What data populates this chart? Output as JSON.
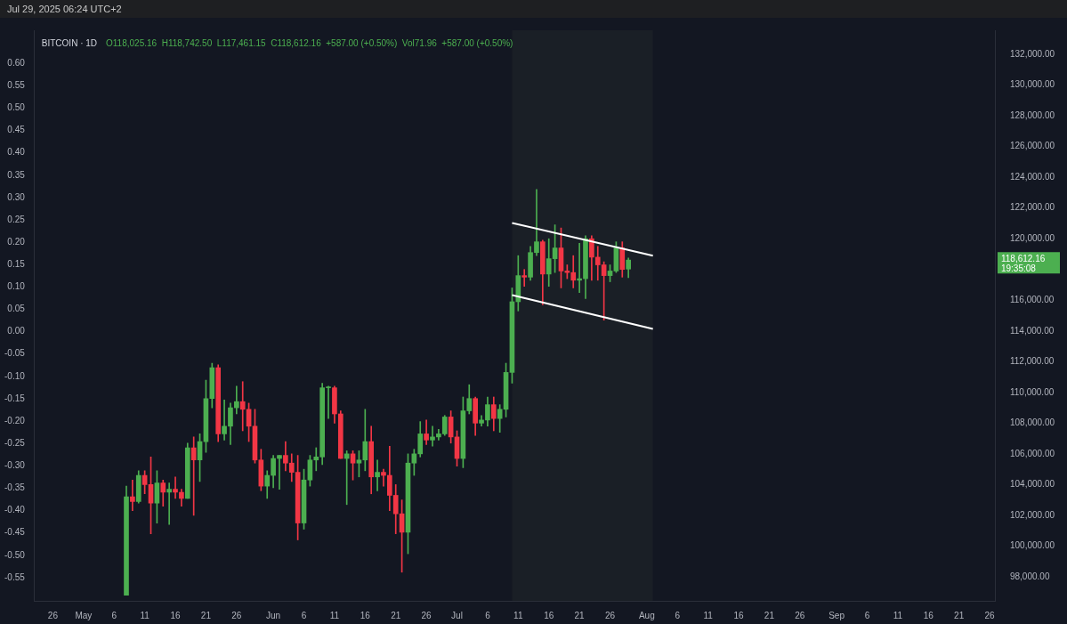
{
  "chart_data": {
    "type": "candlestick",
    "title": "BITCOIN · 1D",
    "subtitle": "O118,025.16  H118,742.50  L117,461.15  C118,612.16  +587.00 (+0.50%)  Vol71.96  +587.00 (+0.50%)",
    "x": [
      "2025-05-08",
      "2025-05-09",
      "2025-05-10",
      "2025-05-11",
      "2025-05-12",
      "2025-05-13",
      "2025-05-14",
      "2025-05-15",
      "2025-05-16",
      "2025-05-17",
      "2025-05-18",
      "2025-05-19",
      "2025-05-20",
      "2025-05-21",
      "2025-05-22",
      "2025-05-23",
      "2025-05-24",
      "2025-05-25",
      "2025-05-26",
      "2025-05-27",
      "2025-05-28",
      "2025-05-29",
      "2025-05-30",
      "2025-05-31",
      "2025-06-01",
      "2025-06-02",
      "2025-06-03",
      "2025-06-04",
      "2025-06-05",
      "2025-06-06",
      "2025-06-07",
      "2025-06-08",
      "2025-06-09",
      "2025-06-10",
      "2025-06-11",
      "2025-06-12",
      "2025-06-13",
      "2025-06-14",
      "2025-06-15",
      "2025-06-16",
      "2025-06-17",
      "2025-06-18",
      "2025-06-19",
      "2025-06-20",
      "2025-06-21",
      "2025-06-22",
      "2025-06-23",
      "2025-06-24",
      "2025-06-25",
      "2025-06-26",
      "2025-06-27",
      "2025-06-28",
      "2025-06-29",
      "2025-06-30",
      "2025-07-01",
      "2025-07-02",
      "2025-07-03",
      "2025-07-04",
      "2025-07-05",
      "2025-07-06",
      "2025-07-07",
      "2025-07-08",
      "2025-07-09",
      "2025-07-10",
      "2025-07-11",
      "2025-07-12",
      "2025-07-13",
      "2025-07-14",
      "2025-07-15",
      "2025-07-16",
      "2025-07-17",
      "2025-07-18",
      "2025-07-19",
      "2025-07-20",
      "2025-07-21",
      "2025-07-22",
      "2025-07-23",
      "2025-07-24",
      "2025-07-25",
      "2025-07-26",
      "2025-07-27",
      "2025-07-28",
      "2025-07-29"
    ],
    "ohlc": [
      [
        96800,
        103900,
        96800,
        103200
      ],
      [
        103200,
        104300,
        102300,
        102900
      ],
      [
        102900,
        104900,
        102800,
        104600
      ],
      [
        104600,
        104900,
        103400,
        104000
      ],
      [
        104000,
        105800,
        100800,
        102800
      ],
      [
        102800,
        104900,
        101500,
        104100
      ],
      [
        104100,
        104300,
        102600,
        103500
      ],
      [
        103500,
        104100,
        101400,
        103700
      ],
      [
        103700,
        104500,
        103100,
        103500
      ],
      [
        103500,
        103700,
        102600,
        103100
      ],
      [
        103100,
        106700,
        103100,
        106400
      ],
      [
        106400,
        107100,
        102000,
        105600
      ],
      [
        105600,
        107300,
        104200,
        106800
      ],
      [
        106800,
        110800,
        106100,
        109600
      ],
      [
        109600,
        111900,
        109000,
        111600
      ],
      [
        111600,
        111800,
        106800,
        107300
      ],
      [
        107300,
        109500,
        106900,
        107800
      ],
      [
        107800,
        109300,
        106600,
        109000
      ],
      [
        109000,
        110400,
        108600,
        109400
      ],
      [
        109400,
        110700,
        107500,
        108900
      ],
      [
        108900,
        109300,
        106800,
        107800
      ],
      [
        107800,
        108900,
        105400,
        105600
      ],
      [
        105600,
        106300,
        103600,
        103900
      ],
      [
        103900,
        104900,
        103100,
        104600
      ],
      [
        104600,
        105900,
        103800,
        105700
      ],
      [
        105700,
        105900,
        103700,
        105900
      ],
      [
        105900,
        106800,
        104900,
        105400
      ],
      [
        105400,
        106000,
        104200,
        104800
      ],
      [
        104800,
        105900,
        100400,
        101500
      ],
      [
        101500,
        105000,
        101100,
        104300
      ],
      [
        104300,
        105900,
        103900,
        105600
      ],
      [
        105600,
        106400,
        104900,
        105800
      ],
      [
        105800,
        110600,
        105300,
        110300
      ],
      [
        110300,
        110400,
        108300,
        110300
      ],
      [
        110300,
        110400,
        108000,
        108600
      ],
      [
        108600,
        108800,
        105700,
        105700
      ],
      [
        105700,
        106200,
        102700,
        106000
      ],
      [
        106000,
        106200,
        104300,
        105400
      ],
      [
        105400,
        106200,
        104500,
        105600
      ],
      [
        105600,
        108900,
        104900,
        106800
      ],
      [
        106800,
        107800,
        103400,
        104500
      ],
      [
        104500,
        105600,
        103600,
        104800
      ],
      [
        104800,
        105000,
        103900,
        104600
      ],
      [
        104600,
        106500,
        102300,
        103300
      ],
      [
        103300,
        104000,
        100800,
        102100
      ],
      [
        102100,
        103000,
        98300,
        100900
      ],
      [
        100900,
        106000,
        99500,
        105400
      ],
      [
        105400,
        106300,
        104600,
        106000
      ],
      [
        106000,
        108100,
        105800,
        107300
      ],
      [
        107300,
        108200,
        106600,
        106900
      ],
      [
        106900,
        107800,
        106500,
        107100
      ],
      [
        107100,
        107600,
        106900,
        107300
      ],
      [
        107300,
        108500,
        107200,
        108400
      ],
      [
        108400,
        108800,
        106700,
        107100
      ],
      [
        107100,
        107500,
        105200,
        105700
      ],
      [
        105700,
        109700,
        105100,
        108800
      ],
      [
        108800,
        110500,
        108600,
        109600
      ],
      [
        109600,
        109700,
        107200,
        108000
      ],
      [
        108000,
        108500,
        107800,
        108200
      ],
      [
        108200,
        109700,
        107800,
        109200
      ],
      [
        109200,
        109700,
        107500,
        108300
      ],
      [
        108300,
        109200,
        107400,
        108900
      ],
      [
        108900,
        111900,
        108400,
        111300
      ],
      [
        111300,
        116800,
        110600,
        115900
      ],
      [
        115900,
        118900,
        115300,
        117600
      ],
      [
        117600,
        118000,
        116900,
        117500
      ],
      [
        117500,
        119500,
        117300,
        119100
      ],
      [
        119100,
        123200,
        118900,
        119800
      ],
      [
        119800,
        119900,
        115700,
        117700
      ],
      [
        117700,
        120000,
        116900,
        118700
      ],
      [
        118700,
        120900,
        117800,
        119400
      ],
      [
        119400,
        120700,
        116800,
        117900
      ],
      [
        117900,
        118300,
        117400,
        117800
      ],
      [
        117800,
        118900,
        116800,
        117300
      ],
      [
        117300,
        119700,
        116500,
        117400
      ],
      [
        117400,
        120200,
        116100,
        120000
      ],
      [
        120000,
        120200,
        117300,
        118800
      ],
      [
        118800,
        119500,
        117300,
        118300
      ],
      [
        118300,
        118500,
        114700,
        117600
      ],
      [
        117600,
        118300,
        117200,
        117900
      ],
      [
        117900,
        119800,
        117800,
        119400
      ],
      [
        119400,
        119800,
        117500,
        118000
      ],
      [
        118025.16,
        118742.5,
        117461.15,
        118612.16
      ]
    ],
    "colors": [
      "#4caf50",
      "#f23645",
      "#4caf50",
      "#f23645",
      "#f23645",
      "#4caf50",
      "#f23645",
      "#4caf50",
      "#f23645",
      "#f23645",
      "#4caf50",
      "#f23645",
      "#4caf50",
      "#4caf50",
      "#4caf50",
      "#f23645",
      "#4caf50",
      "#4caf50",
      "#4caf50",
      "#f23645",
      "#f23645",
      "#f23645",
      "#f23645",
      "#4caf50",
      "#4caf50",
      "#4caf50",
      "#f23645",
      "#f23645",
      "#f23645",
      "#4caf50",
      "#4caf50",
      "#4caf50",
      "#4caf50",
      "#4caf50",
      "#f23645",
      "#f23645",
      "#4caf50",
      "#f23645",
      "#4caf50",
      "#4caf50",
      "#f23645",
      "#4caf50",
      "#f23645",
      "#f23645",
      "#f23645",
      "#f23645",
      "#4caf50",
      "#4caf50",
      "#4caf50",
      "#f23645",
      "#4caf50",
      "#4caf50",
      "#4caf50",
      "#f23645",
      "#f23645",
      "#4caf50",
      "#4caf50",
      "#f23645",
      "#4caf50",
      "#4caf50",
      "#f23645",
      "#4caf50",
      "#4caf50",
      "#4caf50",
      "#4caf50",
      "#f23645",
      "#4caf50",
      "#4caf50",
      "#f23645",
      "#4caf50",
      "#4caf50",
      "#f23645",
      "#f23645",
      "#f23645",
      "#4caf50",
      "#4caf50",
      "#f23645",
      "#f23645",
      "#f23645",
      "#4caf50",
      "#4caf50",
      "#f23645",
      "#4caf50"
    ],
    "series": [
      {
        "type": "line",
        "color": "#ffffff",
        "x": [
          "2025-07-10",
          "2025-08-02"
        ],
        "values": [
          121030,
          118890
        ]
      },
      {
        "type": "line",
        "color": "#ffffff",
        "x": [
          "2025-07-10",
          "2025-08-02"
        ],
        "values": [
          116330,
          114130
        ]
      }
    ],
    "bands": [
      {
        "axis": "x",
        "from": "2025-07-10",
        "to": "2025-08-02",
        "color": "#1a1f26"
      }
    ],
    "xlim": [
      "2025-04-23",
      "2025-09-27"
    ],
    "xticks": [
      {
        "value": "2025-04-26",
        "label": "26"
      },
      {
        "value": "2025-05-01",
        "label": "May"
      },
      {
        "value": "2025-05-06",
        "label": "6"
      },
      {
        "value": "2025-05-11",
        "label": "11"
      },
      {
        "value": "2025-05-16",
        "label": "16"
      },
      {
        "value": "2025-05-21",
        "label": "21"
      },
      {
        "value": "2025-05-26",
        "label": "26"
      },
      {
        "value": "2025-06-01",
        "label": "Jun"
      },
      {
        "value": "2025-06-06",
        "label": "6"
      },
      {
        "value": "2025-06-11",
        "label": "11"
      },
      {
        "value": "2025-06-16",
        "label": "16"
      },
      {
        "value": "2025-06-21",
        "label": "21"
      },
      {
        "value": "2025-06-26",
        "label": "26"
      },
      {
        "value": "2025-07-01",
        "label": "Jul"
      },
      {
        "value": "2025-07-06",
        "label": "6"
      },
      {
        "value": "2025-07-11",
        "label": "11"
      },
      {
        "value": "2025-07-16",
        "label": "16"
      },
      {
        "value": "2025-07-21",
        "label": "21"
      },
      {
        "value": "2025-07-26",
        "label": "26"
      },
      {
        "value": "2025-08-01",
        "label": "Aug"
      },
      {
        "value": "2025-08-06",
        "label": "6"
      },
      {
        "value": "2025-08-11",
        "label": "11"
      },
      {
        "value": "2025-08-16",
        "label": "16"
      },
      {
        "value": "2025-08-21",
        "label": "21"
      },
      {
        "value": "2025-08-26",
        "label": "26"
      },
      {
        "value": "2025-09-01",
        "label": "Sep"
      },
      {
        "value": "2025-09-06",
        "label": "6"
      },
      {
        "value": "2025-09-11",
        "label": "11"
      },
      {
        "value": "2025-09-16",
        "label": "16"
      },
      {
        "value": "2025-09-21",
        "label": "21"
      },
      {
        "value": "2025-09-26",
        "label": "26"
      }
    ],
    "y2lim": [
      -0.602,
      0.674
    ],
    "y2ticks": [
      {
        "value": 0.6,
        "label": "0.60"
      },
      {
        "value": 0.55,
        "label": "0.55"
      },
      {
        "value": 0.5,
        "label": "0.50"
      },
      {
        "value": 0.45,
        "label": "0.45"
      },
      {
        "value": 0.4,
        "label": "0.40"
      },
      {
        "value": 0.35,
        "label": "0.35"
      },
      {
        "value": 0.3,
        "label": "0.30"
      },
      {
        "value": 0.25,
        "label": "0.25"
      },
      {
        "value": 0.2,
        "label": "0.20"
      },
      {
        "value": 0.15,
        "label": "0.15"
      },
      {
        "value": 0.1,
        "label": "0.10"
      },
      {
        "value": 0.05,
        "label": "0.05"
      },
      {
        "value": 0,
        "label": "0.00"
      },
      {
        "value": -0.05,
        "label": "-0.05"
      },
      {
        "value": -0.1,
        "label": "-0.10"
      },
      {
        "value": -0.15,
        "label": "-0.15"
      },
      {
        "value": -0.2,
        "label": "-0.20"
      },
      {
        "value": -0.25,
        "label": "-0.25"
      },
      {
        "value": -0.3,
        "label": "-0.30"
      },
      {
        "value": -0.35,
        "label": "-0.35"
      },
      {
        "value": -0.4,
        "label": "-0.40"
      },
      {
        "value": -0.45,
        "label": "-0.45"
      },
      {
        "value": -0.5,
        "label": "-0.50"
      },
      {
        "value": -0.55,
        "label": "-0.55"
      }
    ],
    "ylim": [
      96434,
      133566
    ],
    "yticks": [
      {
        "value": 98000,
        "label": "98,000.00"
      },
      {
        "value": 100000,
        "label": "100,000.00"
      },
      {
        "value": 102000,
        "label": "102,000.00"
      },
      {
        "value": 104000,
        "label": "104,000.00"
      },
      {
        "value": 106000,
        "label": "106,000.00"
      },
      {
        "value": 108000,
        "label": "108,000.00"
      },
      {
        "value": 110000,
        "label": "110,000.00"
      },
      {
        "value": 112000,
        "label": "112,000.00"
      },
      {
        "value": 114000,
        "label": "114,000.00"
      },
      {
        "value": 116000,
        "label": "116,000.00"
      },
      {
        "value": 120000,
        "label": "120,000.00"
      },
      {
        "value": 122000,
        "label": "122,000.00"
      },
      {
        "value": 124000,
        "label": "124,000.00"
      },
      {
        "value": 126000,
        "label": "126,000.00"
      },
      {
        "value": 128000,
        "label": "128,000.00"
      },
      {
        "value": 130000,
        "label": "130,000.00"
      },
      {
        "value": 132000,
        "label": "132,000.00"
      }
    ],
    "annotations": [
      "Jul 29, 2025 06:24 UTC+2",
      "118,612.16",
      "19:35:08"
    ],
    "legend": false,
    "grid": false
  }
}
